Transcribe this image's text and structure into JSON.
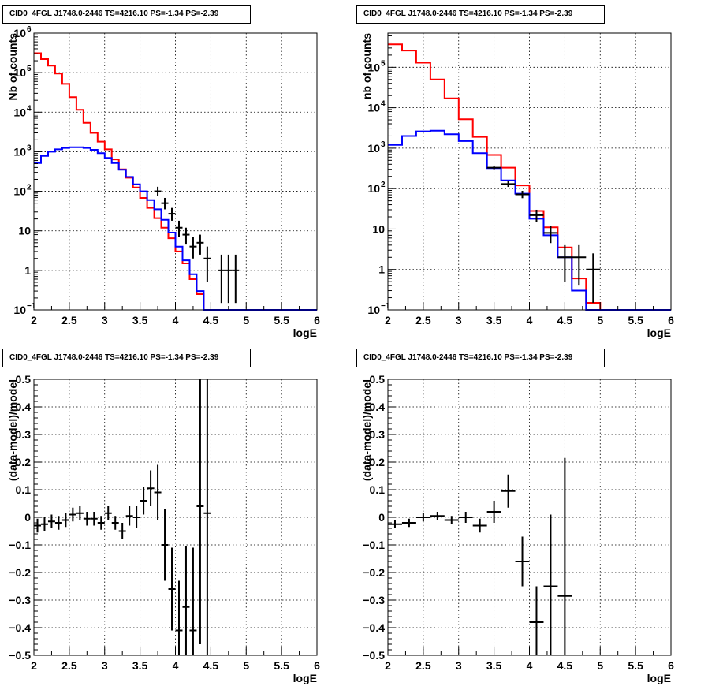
{
  "chart_data": [
    {
      "type": "histogram",
      "title": "CID0_4FGL J1748.0-2446 TS=4216.10 PS=-1.34 PS=-2.39",
      "xlabel": "logE",
      "ylabel": "Nb of counts",
      "xlim": [
        2,
        6
      ],
      "ylim": [
        0.1,
        1000000
      ],
      "yscale": "log",
      "grid": true,
      "xticks": [
        "2",
        "2.5",
        "3",
        "3.5",
        "4",
        "4.5",
        "5",
        "5.5",
        "6"
      ],
      "yticks": [
        {
          "value": 0.1,
          "label": "10",
          "exp": "−1"
        },
        {
          "value": 1,
          "label": "1",
          "exp": ""
        },
        {
          "value": 10,
          "label": "10",
          "exp": ""
        },
        {
          "value": 100,
          "label": "10",
          "exp": "2"
        },
        {
          "value": 1000,
          "label": "10",
          "exp": "3"
        },
        {
          "value": 10000,
          "label": "10",
          "exp": "4"
        },
        {
          "value": 100000,
          "label": "10",
          "exp": "5"
        },
        {
          "value": 1000000,
          "label": "10",
          "exp": "6"
        }
      ],
      "bin_edges_from": 2,
      "bin_width": 0.1,
      "series": [
        {
          "color": "#ff0000",
          "style": "step",
          "values": [
            310000,
            220000,
            150000,
            95000,
            52000,
            24000,
            11500,
            5400,
            3000,
            1800,
            1150,
            640,
            360,
            220,
            125,
            68,
            38,
            21,
            12,
            6.5,
            3,
            1.5,
            0.6,
            0.25,
            0.1,
            0.1,
            0.1,
            0.1,
            0.1,
            0.1,
            0.1,
            0.1,
            0.1,
            0.1,
            0.1,
            0.1,
            0.1,
            0.1,
            0.1,
            0.1
          ]
        },
        {
          "color": "#0000ff",
          "style": "step",
          "values": [
            520,
            780,
            1000,
            1150,
            1250,
            1300,
            1300,
            1250,
            1120,
            920,
            700,
            520,
            350,
            230,
            150,
            100,
            60,
            35,
            19,
            9,
            4,
            1.8,
            0.8,
            0.3,
            0.1,
            0.1,
            0.1,
            0.1,
            0.1,
            0.1,
            0.1,
            0.1,
            0.1,
            0.1,
            0.1,
            0.1,
            0.1,
            0.1,
            0.1,
            0.1
          ]
        },
        {
          "color": "#000000",
          "style": "errorbar",
          "halfwidth": 0.05,
          "points": [
            {
              "x": 3.75,
              "y": 100,
              "lo": 75,
              "hi": 130
            },
            {
              "x": 3.85,
              "y": 50,
              "lo": 35,
              "hi": 68
            },
            {
              "x": 3.95,
              "y": 27,
              "lo": 18,
              "hi": 38
            },
            {
              "x": 4.05,
              "y": 12,
              "lo": 7,
              "hi": 18
            },
            {
              "x": 4.15,
              "y": 8,
              "lo": 4.5,
              "hi": 12
            },
            {
              "x": 4.25,
              "y": 4,
              "lo": 2,
              "hi": 7
            },
            {
              "x": 4.35,
              "y": 5,
              "lo": 2.5,
              "hi": 8
            },
            {
              "x": 4.45,
              "y": 2,
              "lo": 0.5,
              "hi": 4
            },
            {
              "x": 4.65,
              "y": 1,
              "lo": 0.15,
              "hi": 2.5
            },
            {
              "x": 4.75,
              "y": 1,
              "lo": 0.15,
              "hi": 2.5
            },
            {
              "x": 4.85,
              "y": 1,
              "lo": 0.15,
              "hi": 2.5
            }
          ]
        }
      ]
    },
    {
      "type": "histogram",
      "title": "CID0_4FGL J1748.0-2446 TS=4216.10 PS=-1.34 PS=-2.39",
      "xlabel": "logE",
      "ylabel": "nb of counts",
      "xlim": [
        2,
        6
      ],
      "ylim": [
        0.1,
        700000
      ],
      "yscale": "log",
      "grid": true,
      "xticks": [
        "2",
        "2.5",
        "3",
        "3.5",
        "4",
        "4.5",
        "5",
        "5.5",
        "6"
      ],
      "yticks": [
        {
          "value": 0.1,
          "label": "10",
          "exp": "−1"
        },
        {
          "value": 1,
          "label": "1",
          "exp": ""
        },
        {
          "value": 10,
          "label": "10",
          "exp": ""
        },
        {
          "value": 100,
          "label": "10",
          "exp": "2"
        },
        {
          "value": 1000,
          "label": "10",
          "exp": "3"
        },
        {
          "value": 10000,
          "label": "10",
          "exp": "4"
        },
        {
          "value": 100000,
          "label": "10",
          "exp": "5"
        }
      ],
      "bin_edges_from": 2,
      "bin_width": 0.2,
      "series": [
        {
          "color": "#ff0000",
          "style": "step",
          "values": [
            370000,
            260000,
            130000,
            50000,
            17000,
            5200,
            1900,
            680,
            330,
            120,
            28,
            11,
            3.5,
            0.6,
            0.15,
            0.1,
            0.1,
            0.1,
            0.1,
            0.1
          ]
        },
        {
          "color": "#0000ff",
          "style": "step",
          "values": [
            1200,
            2000,
            2600,
            2700,
            2200,
            1500,
            750,
            320,
            160,
            75,
            18,
            7,
            2,
            0.3,
            0.1,
            0.1,
            0.1,
            0.1,
            0.1,
            0.1
          ]
        },
        {
          "color": "#000000",
          "style": "errorbar",
          "halfwidth": 0.1,
          "points": [
            {
              "x": 3.5,
              "y": 330,
              "lo": 300,
              "hi": 370
            },
            {
              "x": 3.7,
              "y": 130,
              "lo": 110,
              "hi": 155
            },
            {
              "x": 3.9,
              "y": 72,
              "lo": 58,
              "hi": 88
            },
            {
              "x": 4.1,
              "y": 22,
              "lo": 15,
              "hi": 30
            },
            {
              "x": 4.3,
              "y": 8,
              "lo": 4.5,
              "hi": 12
            },
            {
              "x": 4.5,
              "y": 2,
              "lo": 0.5,
              "hi": 4
            },
            {
              "x": 4.7,
              "y": 2,
              "lo": 0.4,
              "hi": 4
            },
            {
              "x": 4.9,
              "y": 1,
              "lo": 0.15,
              "hi": 2.5
            }
          ]
        }
      ]
    },
    {
      "type": "scatter",
      "title": "CID0_4FGL J1748.0-2446 TS=4216.10 PS=-1.34 PS=-2.39",
      "xlabel": "logE",
      "ylabel": "(data-model)/model",
      "xlim": [
        2,
        6
      ],
      "ylim": [
        -0.5,
        0.5
      ],
      "yscale": "linear",
      "grid": true,
      "xticks": [
        "2",
        "2.5",
        "3",
        "3.5",
        "4",
        "4.5",
        "5",
        "5.5",
        "6"
      ],
      "yticks": [
        {
          "value": -0.5,
          "label": "−0.5"
        },
        {
          "value": -0.4,
          "label": "−0.4"
        },
        {
          "value": -0.3,
          "label": "−0.3"
        },
        {
          "value": -0.2,
          "label": "−0.2"
        },
        {
          "value": -0.1,
          "label": "−0.1"
        },
        {
          "value": 0,
          "label": "0"
        },
        {
          "value": 0.1,
          "label": "0.1"
        },
        {
          "value": 0.2,
          "label": "0.2"
        },
        {
          "value": 0.3,
          "label": "0.3"
        },
        {
          "value": 0.4,
          "label": "0.4"
        },
        {
          "value": 0.5,
          "label": "0.5"
        }
      ],
      "series": [
        {
          "color": "#000000",
          "style": "errorbar",
          "halfwidth": 0.05,
          "points": [
            {
              "x": 2.05,
              "y": -0.03,
              "err": 0.025
            },
            {
              "x": 2.15,
              "y": -0.025,
              "err": 0.025
            },
            {
              "x": 2.25,
              "y": -0.015,
              "err": 0.025
            },
            {
              "x": 2.35,
              "y": -0.02,
              "err": 0.025
            },
            {
              "x": 2.45,
              "y": -0.01,
              "err": 0.025
            },
            {
              "x": 2.55,
              "y": 0.01,
              "err": 0.025
            },
            {
              "x": 2.65,
              "y": 0.015,
              "err": 0.025
            },
            {
              "x": 2.75,
              "y": -0.005,
              "err": 0.025
            },
            {
              "x": 2.85,
              "y": -0.005,
              "err": 0.025
            },
            {
              "x": 2.95,
              "y": -0.02,
              "err": 0.025
            },
            {
              "x": 3.05,
              "y": 0.015,
              "err": 0.025
            },
            {
              "x": 3.15,
              "y": -0.02,
              "err": 0.025
            },
            {
              "x": 3.25,
              "y": -0.05,
              "err": 0.03
            },
            {
              "x": 3.35,
              "y": 0.005,
              "err": 0.035
            },
            {
              "x": 3.45,
              "y": 0.0,
              "err": 0.04
            },
            {
              "x": 3.55,
              "y": 0.06,
              "err": 0.05
            },
            {
              "x": 3.65,
              "y": 0.105,
              "err": 0.065
            },
            {
              "x": 3.75,
              "y": 0.09,
              "err": 0.1
            },
            {
              "x": 3.85,
              "y": -0.1,
              "err": 0.13
            },
            {
              "x": 3.95,
              "y": -0.26,
              "err": 0.15
            },
            {
              "x": 4.05,
              "y": -0.41,
              "err": 0.18
            },
            {
              "x": 4.15,
              "y": -0.325,
              "err": 0.22
            },
            {
              "x": 4.25,
              "y": -0.41,
              "err": 0.3
            },
            {
              "x": 4.35,
              "y": 0.04,
              "err": 0.5
            },
            {
              "x": 4.45,
              "y": 0.015,
              "err": 0.6
            }
          ]
        }
      ]
    },
    {
      "type": "scatter",
      "title": "CID0_4FGL J1748.0-2446 TS=4216.10 PS=-1.34 PS=-2.39",
      "xlabel": "logE",
      "ylabel": "(data-model)/model",
      "xlim": [
        2,
        6
      ],
      "ylim": [
        -0.5,
        0.5
      ],
      "yscale": "linear",
      "grid": true,
      "xticks": [
        "2",
        "2.5",
        "3",
        "3.5",
        "4",
        "4.5",
        "5",
        "5.5",
        "6"
      ],
      "yticks": [
        {
          "value": -0.5,
          "label": "−0.5"
        },
        {
          "value": -0.4,
          "label": "−0.4"
        },
        {
          "value": -0.3,
          "label": "−0.3"
        },
        {
          "value": -0.2,
          "label": "−0.2"
        },
        {
          "value": -0.1,
          "label": "−0.1"
        },
        {
          "value": 0,
          "label": "0"
        },
        {
          "value": 0.1,
          "label": "0.1"
        },
        {
          "value": 0.2,
          "label": "0.2"
        },
        {
          "value": 0.3,
          "label": "0.3"
        },
        {
          "value": 0.4,
          "label": "0.4"
        },
        {
          "value": 0.5,
          "label": "0.5"
        }
      ],
      "series": [
        {
          "color": "#000000",
          "style": "errorbar",
          "halfwidth": 0.1,
          "points": [
            {
              "x": 2.1,
              "y": -0.025,
              "err": 0.015
            },
            {
              "x": 2.3,
              "y": -0.02,
              "err": 0.015
            },
            {
              "x": 2.5,
              "y": 0.0,
              "err": 0.015
            },
            {
              "x": 2.7,
              "y": 0.005,
              "err": 0.015
            },
            {
              "x": 2.9,
              "y": -0.01,
              "err": 0.015
            },
            {
              "x": 3.1,
              "y": 0.0,
              "err": 0.02
            },
            {
              "x": 3.3,
              "y": -0.03,
              "err": 0.025
            },
            {
              "x": 3.5,
              "y": 0.02,
              "err": 0.04
            },
            {
              "x": 3.7,
              "y": 0.095,
              "err": 0.06
            },
            {
              "x": 3.9,
              "y": -0.16,
              "err": 0.09
            },
            {
              "x": 4.1,
              "y": -0.38,
              "err": 0.13
            },
            {
              "x": 4.3,
              "y": -0.25,
              "err": 0.26
            },
            {
              "x": 4.5,
              "y": -0.285,
              "err": 0.5
            }
          ]
        }
      ]
    }
  ]
}
